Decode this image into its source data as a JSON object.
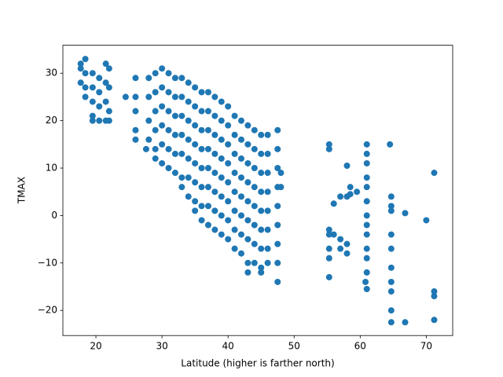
{
  "chart_data": {
    "type": "scatter",
    "x_label": "Latitude (higher is farther north)",
    "y_label": "TMAX",
    "color": "#1f77b4",
    "x": [
      17.7,
      17.7,
      17.7,
      18.4,
      18.4,
      18.4,
      18.4,
      19.5,
      19.5,
      19.5,
      19.5,
      19.5,
      20.5,
      20.5,
      20.5,
      20.5,
      21.5,
      21.5,
      21.5,
      21.5,
      22,
      22,
      22,
      22,
      24.5,
      26,
      26,
      26,
      26,
      26,
      27.6,
      28,
      28,
      28,
      28,
      29,
      29,
      29,
      29,
      29,
      29,
      30,
      30,
      30,
      30,
      30,
      30,
      31,
      31,
      31,
      31,
      31,
      31,
      32,
      32,
      32,
      32,
      32,
      32,
      33,
      33,
      33,
      33,
      33,
      33,
      33,
      34,
      34,
      34,
      34,
      34,
      34,
      34,
      35,
      35,
      35,
      35,
      35,
      35,
      35,
      35,
      36,
      36,
      36,
      36,
      36,
      36,
      36,
      36,
      37,
      37,
      37,
      37,
      37,
      37,
      37,
      37,
      38,
      38,
      38,
      38,
      38,
      38,
      38,
      38,
      39,
      39,
      39,
      39,
      39,
      39,
      39,
      39,
      40,
      40,
      40,
      40,
      40,
      40,
      40,
      40,
      41,
      41,
      41,
      41,
      41,
      41,
      41,
      41,
      42,
      42,
      42,
      42,
      42,
      42,
      42,
      42,
      43,
      43,
      43,
      43,
      43,
      43,
      43,
      43,
      43,
      44,
      44,
      44,
      44,
      44,
      44,
      44,
      44,
      45,
      45,
      45,
      45,
      45,
      45,
      45,
      45,
      45,
      46,
      46,
      46,
      46,
      46,
      46,
      46,
      46,
      47.5,
      47.5,
      47.5,
      47.5,
      47.5,
      47.5,
      47.5,
      47.5,
      47.5,
      48,
      48,
      55.3,
      55.3,
      55.3,
      55.3,
      55.3,
      55.3,
      55.3,
      56,
      56,
      57,
      57,
      57,
      58,
      58,
      58,
      58,
      58.5,
      58.5,
      59.5,
      60.8,
      61,
      61,
      61,
      61,
      61,
      61,
      61,
      61,
      61,
      61,
      61,
      61,
      61,
      64.5,
      64.7,
      64.7,
      64.7,
      64.7,
      64.7,
      64.7,
      64.7,
      64.7,
      64.7,
      64.7,
      66.8,
      66.8,
      70,
      71.2,
      71.2,
      71.2,
      71.2
    ],
    "values": [
      32,
      31,
      28,
      33,
      30,
      27,
      25,
      30,
      27,
      24,
      21,
      20,
      29,
      26,
      23,
      20,
      32,
      28,
      24,
      20,
      31,
      27,
      22,
      20,
      25,
      29,
      25,
      22,
      18,
      16,
      14,
      29,
      25,
      20,
      16,
      30,
      26,
      22,
      18,
      14,
      12,
      31,
      27,
      23,
      19,
      15,
      11,
      30,
      26,
      22,
      18,
      14,
      10,
      29,
      25,
      21,
      17,
      13,
      9,
      29,
      25,
      21,
      17,
      13,
      8,
      6,
      28,
      24,
      20,
      16,
      12,
      8,
      4,
      27,
      23,
      19,
      15,
      11,
      7,
      3,
      1,
      26,
      22,
      18,
      14,
      10,
      6,
      2,
      -1,
      26,
      22,
      18,
      14,
      10,
      6,
      2,
      -2,
      25,
      21,
      17,
      13,
      9,
      5,
      1,
      -3,
      24,
      20,
      16,
      12,
      8,
      4,
      0,
      -4,
      23,
      19,
      15,
      11,
      7,
      3,
      -1,
      -5,
      21,
      17,
      13,
      9,
      5,
      1,
      -3,
      -7,
      20,
      16,
      12,
      8,
      4,
      0,
      -4,
      -8,
      19,
      15,
      11,
      7,
      3,
      -1,
      -5,
      -10,
      -12,
      18,
      14,
      10,
      6,
      2,
      -2,
      -6,
      -10,
      17,
      13,
      9,
      5,
      1,
      -3,
      -7,
      -11,
      -12,
      17,
      13,
      9,
      5,
      1,
      -3,
      -7,
      -10,
      18,
      14,
      10,
      6,
      2,
      -2,
      -6,
      -10,
      -14,
      9,
      6,
      15,
      14,
      -3,
      -4,
      -7,
      -9,
      -13,
      2.5,
      -4,
      4,
      -5,
      -7,
      10.5,
      4,
      -6,
      -8,
      6,
      4.5,
      5,
      -14,
      15,
      13,
      11,
      8,
      6,
      3,
      0,
      -2,
      -4,
      -7,
      -9,
      -12,
      -15.5,
      15,
      4,
      2,
      1,
      -4,
      -7,
      -11,
      -14,
      -16,
      -20,
      -22.5,
      0.5,
      -22.5,
      -1,
      9,
      -16,
      -17,
      -22
    ],
    "xlim": [
      15,
      74
    ],
    "ylim": [
      -25.3,
      35.9
    ],
    "xticks": [
      20,
      30,
      40,
      50,
      60,
      70
    ],
    "yticks": [
      {
        "value": -20,
        "label": "−20"
      },
      {
        "value": -10,
        "label": "−10"
      },
      0,
      10,
      20,
      30
    ]
  }
}
